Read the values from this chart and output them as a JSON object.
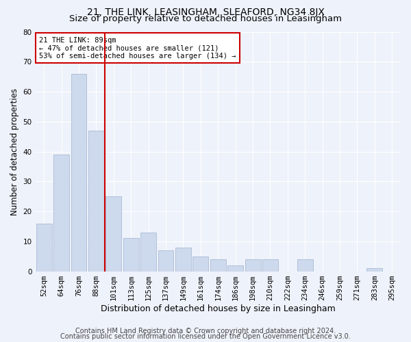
{
  "title1": "21, THE LINK, LEASINGHAM, SLEAFORD, NG34 8JX",
  "title2": "Size of property relative to detached houses in Leasingham",
  "xlabel": "Distribution of detached houses by size in Leasingham",
  "ylabel": "Number of detached properties",
  "categories": [
    "52sqm",
    "64sqm",
    "76sqm",
    "88sqm",
    "101sqm",
    "113sqm",
    "125sqm",
    "137sqm",
    "149sqm",
    "161sqm",
    "174sqm",
    "186sqm",
    "198sqm",
    "210sqm",
    "222sqm",
    "234sqm",
    "246sqm",
    "259sqm",
    "271sqm",
    "283sqm",
    "295sqm"
  ],
  "values": [
    16,
    39,
    66,
    47,
    25,
    11,
    13,
    7,
    8,
    5,
    4,
    2,
    4,
    4,
    0,
    4,
    0,
    0,
    0,
    1,
    0
  ],
  "bar_color": "#cdd9ed",
  "bar_edgecolor": "#aabbd4",
  "vline_x": 3.5,
  "annotation_text": "21 THE LINK: 89sqm\n← 47% of detached houses are smaller (121)\n53% of semi-detached houses are larger (134) →",
  "annotation_box_color": "#ffffff",
  "annotation_box_edgecolor": "#cc0000",
  "vline_color": "#cc0000",
  "ylim": [
    0,
    80
  ],
  "yticks": [
    0,
    10,
    20,
    30,
    40,
    50,
    60,
    70,
    80
  ],
  "footer1": "Contains HM Land Registry data © Crown copyright and database right 2024.",
  "footer2": "Contains public sector information licensed under the Open Government Licence v3.0.",
  "background_color": "#eef2fa",
  "grid_color": "#ffffff",
  "title1_fontsize": 10,
  "title2_fontsize": 9.5,
  "xlabel_fontsize": 9,
  "ylabel_fontsize": 8.5,
  "tick_fontsize": 7.5,
  "annotation_fontsize": 7.5,
  "footer_fontsize": 7
}
